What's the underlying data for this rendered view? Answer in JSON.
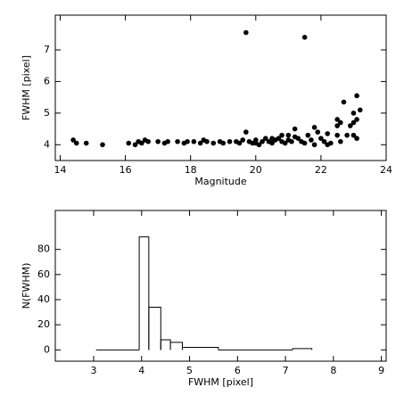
{
  "chart_data": [
    {
      "type": "scatter",
      "x_label": "Magnitude",
      "y_label": "FWHM [pixel]",
      "color": "#000000",
      "x": [
        14.4,
        14.5,
        14.8,
        15.3,
        16.1,
        16.3,
        16.4,
        16.5,
        16.6,
        16.7,
        17.0,
        17.2,
        17.3,
        17.6,
        17.8,
        17.9,
        18.1,
        18.3,
        18.4,
        18.5,
        18.7,
        18.9,
        19.0,
        19.2,
        19.4,
        19.5,
        19.6,
        19.7,
        19.7,
        19.8,
        19.9,
        20.0,
        20.1,
        20.2,
        20.3,
        20.4,
        20.5,
        20.6,
        20.7,
        20.8,
        20.9,
        21.0,
        21.1,
        21.2,
        21.3,
        21.4,
        21.5,
        21.5,
        21.6,
        21.7,
        21.8,
        21.9,
        22.0,
        22.1,
        22.2,
        22.3,
        22.5,
        22.5,
        22.5,
        22.6,
        22.7,
        22.8,
        22.9,
        23.0,
        23.0,
        23.1,
        23.1,
        23.1,
        23.2,
        23.0,
        22.6,
        21.2,
        20.8,
        21.8,
        22.2,
        20.0,
        20.5,
        21.0
      ],
      "values": [
        4.15,
        4.05,
        4.05,
        4.0,
        4.05,
        4.0,
        4.1,
        4.05,
        4.15,
        4.1,
        4.1,
        4.05,
        4.1,
        4.1,
        4.05,
        4.1,
        4.1,
        4.05,
        4.15,
        4.1,
        4.05,
        4.1,
        4.05,
        4.1,
        4.1,
        4.05,
        4.15,
        7.55,
        4.4,
        4.1,
        4.05,
        4.15,
        4.0,
        4.1,
        4.2,
        4.1,
        4.05,
        4.15,
        4.2,
        4.1,
        4.05,
        4.3,
        4.1,
        4.5,
        4.2,
        4.1,
        7.4,
        4.05,
        4.3,
        4.15,
        4.0,
        4.4,
        4.2,
        4.1,
        4.35,
        4.05,
        4.8,
        4.6,
        4.3,
        4.7,
        5.35,
        4.3,
        4.6,
        4.3,
        5.0,
        5.55,
        4.8,
        4.2,
        5.1,
        4.7,
        4.1,
        4.25,
        4.3,
        4.55,
        4.0,
        4.05,
        4.2,
        4.15
      ],
      "xlim": [
        13.85,
        24
      ],
      "xticks": [
        14,
        16,
        18,
        20,
        22,
        24
      ],
      "ylim": [
        3.5,
        8.1
      ],
      "yticks": [
        4,
        5,
        6,
        7
      ]
    },
    {
      "type": "histogram",
      "x_label": "FWHM [pixel]",
      "y_label": "N(FWHM)",
      "color": "#000000",
      "bins": [
        3.05,
        3.95,
        4.15,
        4.4,
        4.6,
        4.85,
        5.6,
        7.15,
        7.55
      ],
      "values": [
        0,
        90,
        34,
        8,
        6,
        2,
        0,
        1
      ],
      "xlim": [
        2.2,
        9.1
      ],
      "xticks": [
        3,
        4,
        5,
        6,
        7,
        8,
        9
      ],
      "ylim": [
        -9,
        111
      ],
      "yticks": [
        0,
        20,
        40,
        60,
        80
      ]
    }
  ]
}
